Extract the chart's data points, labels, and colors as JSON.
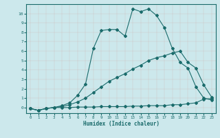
{
  "xlabel": "Humidex (Indice chaleur)",
  "background_color": "#cce8ec",
  "grid_color": "#b0ced4",
  "line_color": "#1a6b6b",
  "xlim": [
    -0.5,
    23.5
  ],
  "ylim": [
    -0.6,
    11.0
  ],
  "yticks": [
    0,
    1,
    2,
    3,
    4,
    5,
    6,
    7,
    8,
    9,
    10
  ],
  "xticks": [
    0,
    1,
    2,
    3,
    4,
    5,
    6,
    7,
    8,
    9,
    10,
    11,
    12,
    13,
    14,
    15,
    16,
    17,
    18,
    19,
    20,
    21,
    22,
    23
  ],
  "line1_x": [
    0,
    1,
    2,
    3,
    4,
    5,
    6,
    7,
    8,
    9,
    10,
    11,
    12,
    13,
    14,
    15,
    16,
    17,
    18,
    19,
    20,
    21,
    22,
    23
  ],
  "line1_y": [
    -0.1,
    -0.3,
    -0.1,
    0.0,
    0.0,
    0.0,
    0.05,
    0.05,
    0.05,
    0.1,
    0.1,
    0.1,
    0.1,
    0.15,
    0.15,
    0.2,
    0.2,
    0.2,
    0.3,
    0.3,
    0.4,
    0.5,
    0.9,
    0.95
  ],
  "line2_x": [
    0,
    1,
    2,
    3,
    4,
    5,
    6,
    7,
    8,
    9,
    10,
    11,
    12,
    13,
    14,
    15,
    16,
    17,
    18,
    19,
    20,
    21,
    22,
    23
  ],
  "line2_y": [
    -0.1,
    -0.3,
    -0.1,
    0.0,
    0.1,
    0.3,
    0.6,
    1.0,
    1.6,
    2.2,
    2.8,
    3.2,
    3.6,
    4.1,
    4.5,
    5.0,
    5.3,
    5.5,
    5.8,
    6.0,
    4.8,
    4.2,
    2.4,
    1.1
  ],
  "line3_x": [
    0,
    1,
    2,
    3,
    4,
    5,
    6,
    7,
    8,
    9,
    10,
    11,
    12,
    13,
    14,
    15,
    16,
    17,
    18,
    19,
    20,
    21,
    22,
    23
  ],
  "line3_y": [
    -0.1,
    -0.3,
    -0.1,
    0.0,
    0.2,
    0.5,
    1.3,
    2.5,
    6.3,
    8.2,
    8.3,
    8.3,
    7.6,
    10.5,
    10.2,
    10.5,
    9.8,
    8.5,
    6.3,
    4.8,
    4.2,
    2.2,
    1.0,
    0.8
  ],
  "marker": "D",
  "markersize": 2.0,
  "linewidth": 0.8
}
